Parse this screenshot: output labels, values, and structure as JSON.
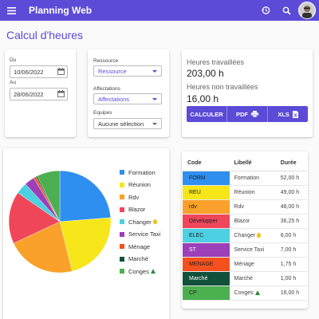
{
  "appbar": {
    "title": "Planning Web",
    "menu_icon": "menu-icon",
    "history_icon": "history-icon",
    "search_icon": "search-icon",
    "accent": "#5b4bd6"
  },
  "page": {
    "title": "Calcul d'heures"
  },
  "dates": {
    "du_label": "Du",
    "du_value": "10/06/2022",
    "au_label": "Au",
    "au_value": "28/06/2022"
  },
  "filters": {
    "ressource_label": "Ressource",
    "ressource_value": "Ressource",
    "affectations_label": "Affectations",
    "affectations_value": "Affectations",
    "equipes_label": "Equipes",
    "equipes_value": "Aucune sélection"
  },
  "stats": {
    "worked_label": "Heures travaillées",
    "worked_value": "203,00 h",
    "not_worked_label": "Heures non travaillées",
    "not_worked_value": "16,00 h"
  },
  "actions": {
    "calculate": "CALCULER",
    "pdf": "PDF",
    "xls": "XLS"
  },
  "chart_data": {
    "type": "pie",
    "slices": [
      {
        "label": "Formation",
        "value": 52.0,
        "color": "#2f8ff0"
      },
      {
        "label": "Réunion",
        "value": 49.0,
        "color": "#f6e61a"
      },
      {
        "label": "Rdv",
        "value": 48.0,
        "color": "#f9a12a"
      },
      {
        "label": "Blazor",
        "value": 36.25,
        "color": "#f0465a"
      },
      {
        "label": "Changer",
        "value": 8.0,
        "color": "#4dd0e1"
      },
      {
        "label": "Service Taxi",
        "value": 7.0,
        "color": "#9c3fb8"
      },
      {
        "label": "Ménage",
        "value": 1.75,
        "color": "#f4511e"
      },
      {
        "label": "Marché",
        "value": 1.0,
        "color": "#11503b"
      },
      {
        "label": "Conges",
        "value": 16.0,
        "color": "#4caf50"
      }
    ]
  },
  "table": {
    "headers": {
      "code": "Code",
      "libelle": "Libellé",
      "duree": "Durée"
    },
    "rows": [
      {
        "code": "FORM",
        "libelle": "Formation",
        "duree": "52,00 h",
        "color": "#2f8ff0"
      },
      {
        "code": "REU",
        "libelle": "Réunion",
        "duree": "49,00 h",
        "color": "#f6e61a"
      },
      {
        "code": "rdv",
        "libelle": "Rdv",
        "duree": "48,00 h",
        "color": "#f9a12a"
      },
      {
        "code": "Développer",
        "libelle": "Blazor",
        "duree": "36,25 h",
        "color": "#f0465a"
      },
      {
        "code": "ELEC",
        "libelle": "Changer",
        "duree": "8,00 h",
        "color": "#4dd0e1"
      },
      {
        "code": "ST",
        "libelle": "Service Taxi",
        "duree": "7,00 h",
        "color": "#9c3fb8"
      },
      {
        "code": "MENAGE",
        "libelle": "Ménage",
        "duree": "1,75 h",
        "color": "#f4511e"
      },
      {
        "code": "Marché",
        "libelle": "Marché",
        "duree": "1,00 h",
        "color": "#11503b"
      },
      {
        "code": "CP",
        "libelle": "Conges",
        "duree": "16,00 h",
        "color": "#4caf50"
      }
    ]
  }
}
